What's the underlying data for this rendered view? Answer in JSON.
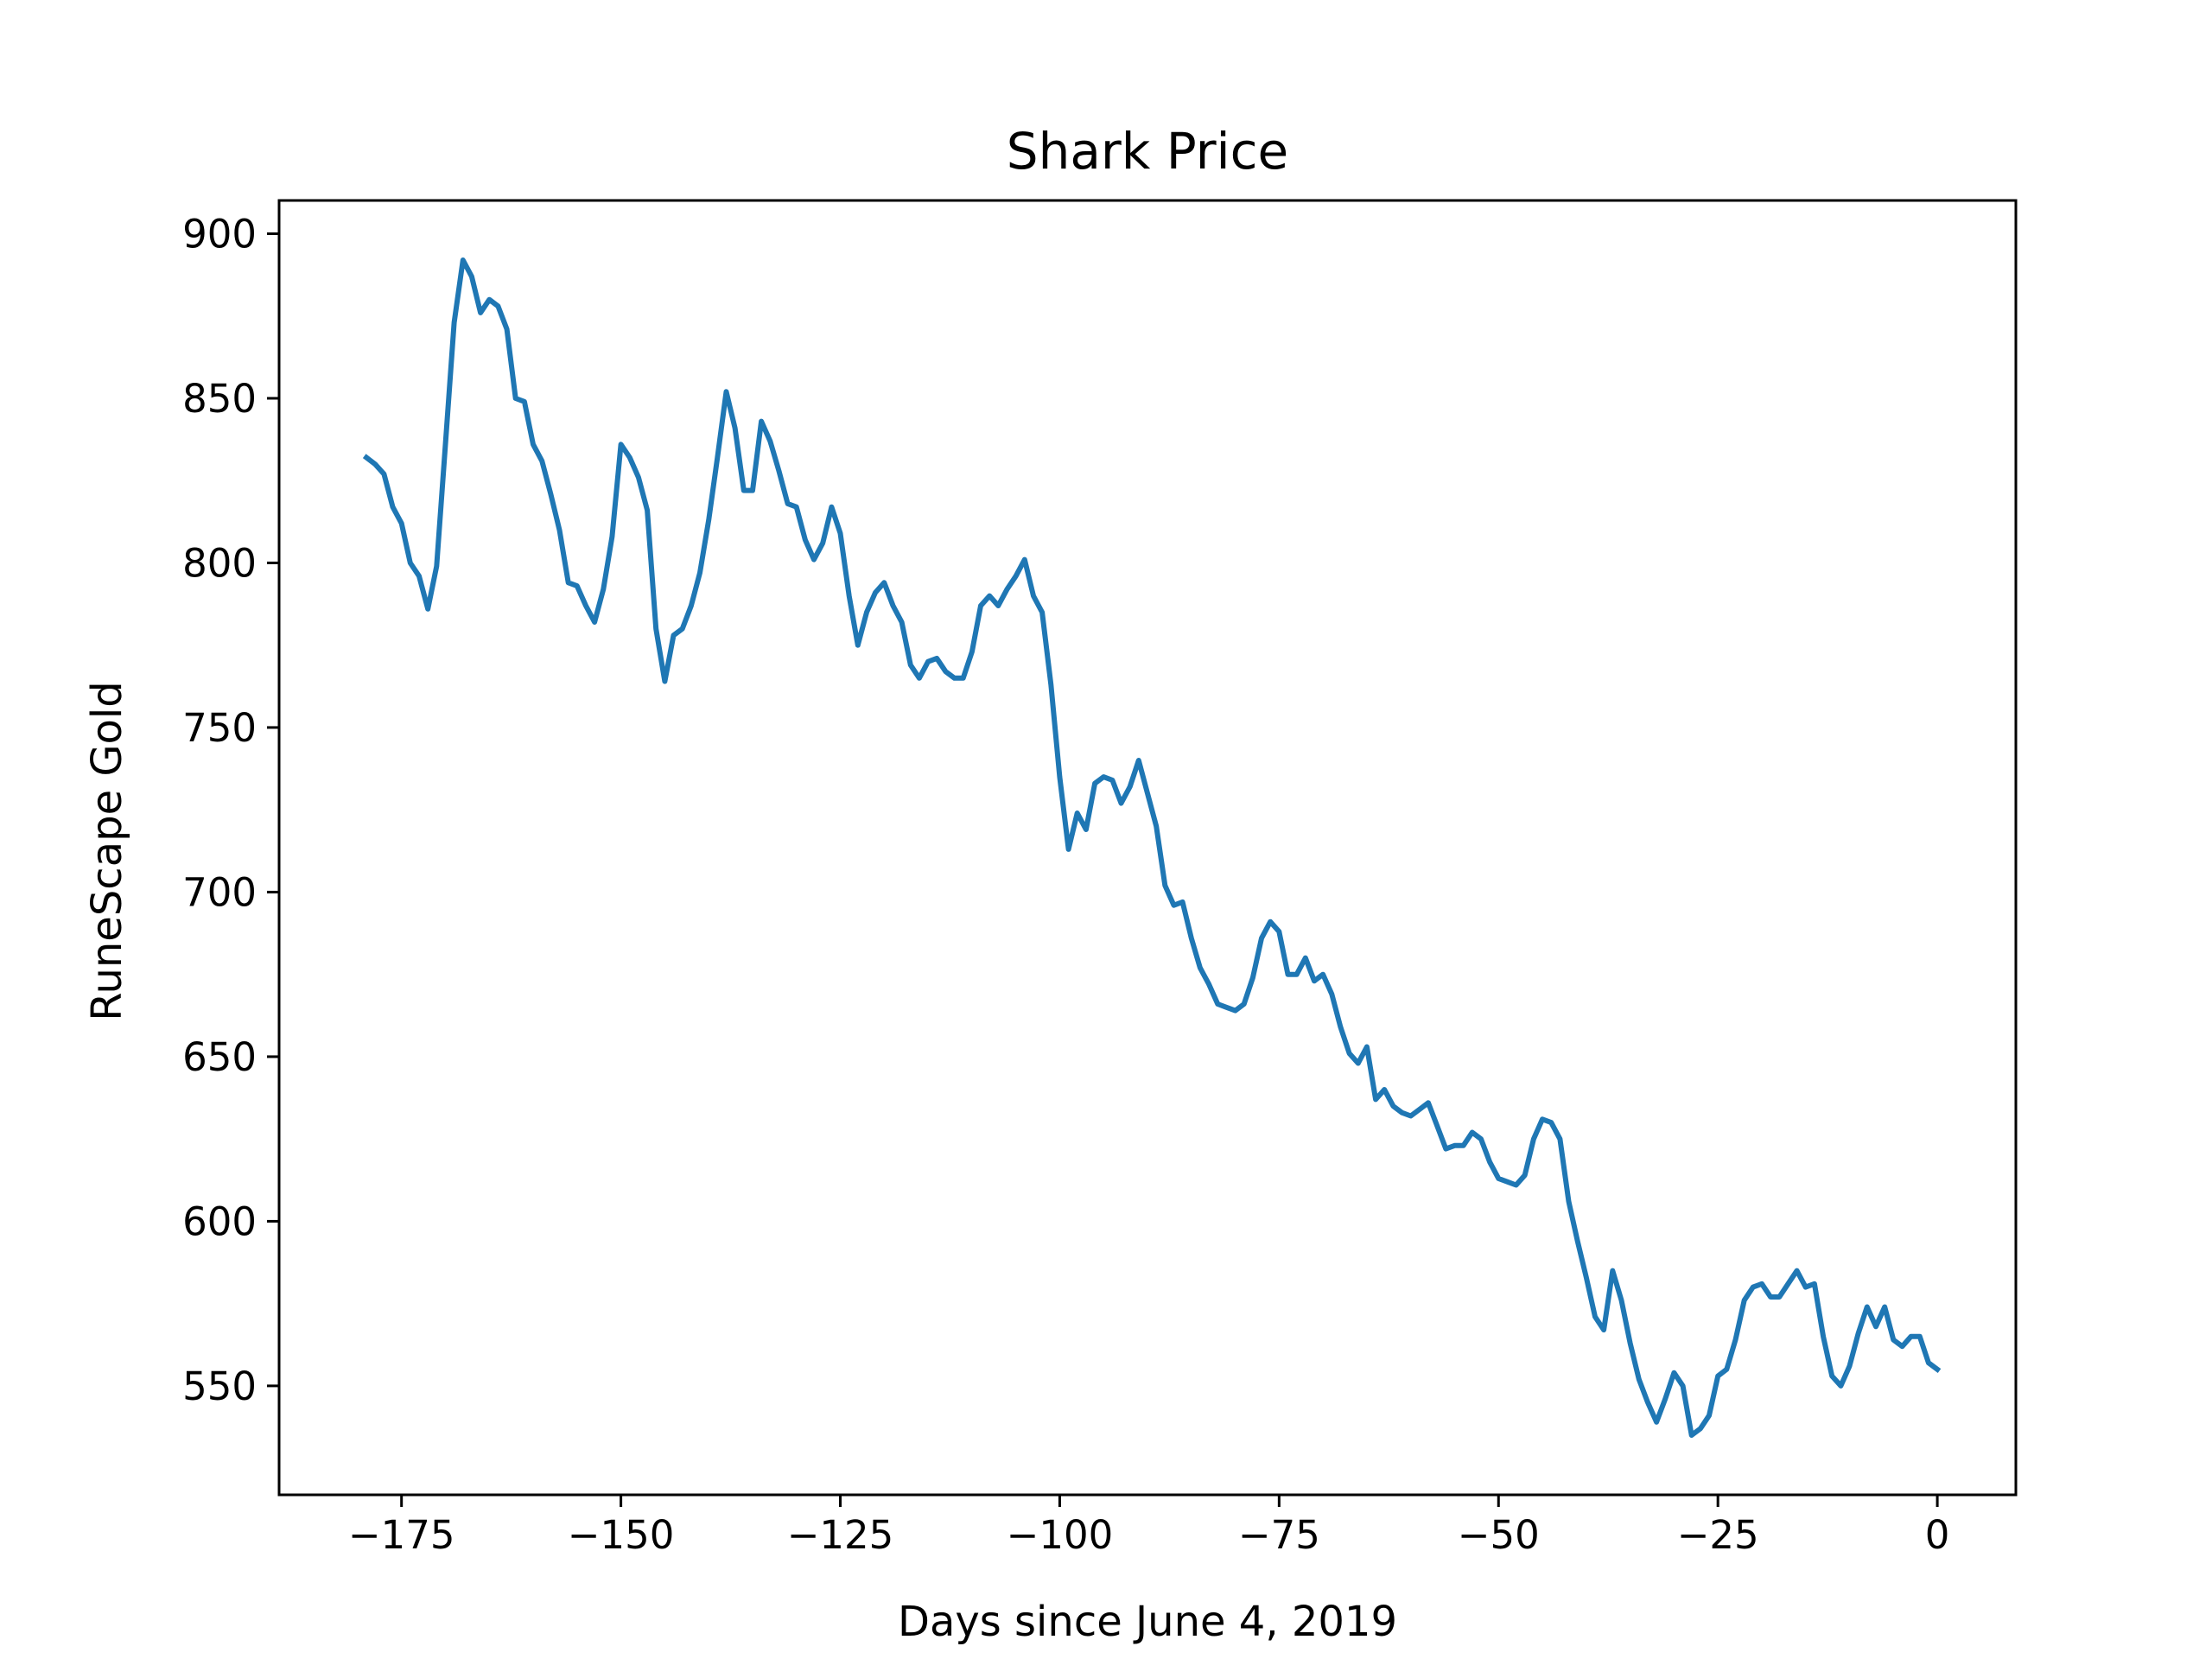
{
  "chart_data": {
    "type": "line",
    "title": "Shark Price",
    "xlabel": "Days since June 4, 2019",
    "ylabel": "RuneScape Gold",
    "xlim": [
      -188.95,
      8.95
    ],
    "ylim": [
      516.9,
      910.1
    ],
    "x_ticks": [
      -175,
      -150,
      -125,
      -100,
      -75,
      -50,
      -25,
      0
    ],
    "x_tick_labels": [
      "−175",
      "−150",
      "−125",
      "−100",
      "−75",
      "−50",
      "−25",
      "0"
    ],
    "y_ticks": [
      550,
      600,
      650,
      700,
      750,
      800,
      850,
      900
    ],
    "y_tick_labels": [
      "550",
      "600",
      "650",
      "700",
      "750",
      "800",
      "850",
      "900"
    ],
    "grid": false,
    "series": [
      {
        "color": "#1f77b4",
        "x": [
          -179,
          -178,
          -177,
          -176,
          -175,
          -174,
          -173,
          -172,
          -171,
          -170,
          -169,
          -168,
          -167,
          -166,
          -165,
          -164,
          -163,
          -162,
          -161,
          -160,
          -159,
          -158,
          -157,
          -156,
          -155,
          -154,
          -153,
          -152,
          -151,
          -150,
          -149,
          -148,
          -147,
          -146,
          -145,
          -144,
          -143,
          -142,
          -141,
          -140,
          -139,
          -138,
          -137,
          -136,
          -135,
          -134,
          -133,
          -132,
          -131,
          -130,
          -129,
          -128,
          -127,
          -126,
          -125,
          -124,
          -123,
          -122,
          -121,
          -120,
          -119,
          -118,
          -117,
          -116,
          -115,
          -114,
          -113,
          -112,
          -111,
          -110,
          -109,
          -108,
          -107,
          -106,
          -105,
          -104,
          -103,
          -102,
          -101,
          -100,
          -99,
          -98,
          -97,
          -96,
          -95,
          -94,
          -93,
          -92,
          -91,
          -90,
          -89,
          -88,
          -87,
          -86,
          -85,
          -84,
          -83,
          -82,
          -81,
          -80,
          -79,
          -78,
          -77,
          -76,
          -75,
          -74,
          -73,
          -72,
          -71,
          -70,
          -69,
          -68,
          -67,
          -66,
          -65,
          -64,
          -63,
          -62,
          -61,
          -60,
          -59,
          -58,
          -57,
          -56,
          -55,
          -54,
          -53,
          -52,
          -51,
          -50,
          -49,
          -48,
          -47,
          -46,
          -45,
          -44,
          -43,
          -42,
          -41,
          -40,
          -39,
          -38,
          -37,
          -36,
          -35,
          -34,
          -33,
          -32,
          -31,
          -30,
          -29,
          -28,
          -27,
          -26,
          -25,
          -24,
          -23,
          -22,
          -21,
          -20,
          -19,
          -18,
          -17,
          -16,
          -15,
          -14,
          -13,
          -12,
          -11,
          -10,
          -9,
          -8,
          -7,
          -6,
          -5,
          -4,
          -3,
          -2,
          -1,
          0
        ],
        "y": [
          832,
          830,
          827,
          817,
          812,
          800,
          796,
          786,
          799,
          836,
          873,
          892,
          887,
          876,
          880,
          878,
          871,
          850,
          849,
          836,
          831,
          821,
          810,
          794,
          793,
          787,
          782,
          792,
          808,
          836,
          832,
          826,
          816,
          780,
          764,
          778,
          780,
          787,
          797,
          813,
          832,
          852,
          841,
          822,
          822,
          843,
          837,
          828,
          818,
          817,
          807,
          801,
          806,
          817,
          809,
          790,
          775,
          785,
          791,
          794,
          787,
          782,
          769,
          765,
          770,
          771,
          767,
          765,
          765,
          773,
          787,
          790,
          787,
          792,
          796,
          801,
          790,
          785,
          763,
          735,
          713,
          724,
          719,
          733,
          735,
          734,
          727,
          732,
          740,
          730,
          720,
          702,
          696,
          697,
          686,
          677,
          672,
          666,
          665,
          664,
          666,
          674,
          686,
          691,
          688,
          675,
          675,
          680,
          673,
          675,
          669,
          659,
          651,
          648,
          653,
          637,
          640,
          635,
          633,
          632,
          634,
          636,
          629,
          622,
          623,
          623,
          627,
          625,
          618,
          613,
          612,
          611,
          614,
          625,
          631,
          630,
          625,
          606,
          594,
          583,
          571,
          567,
          585,
          576,
          563,
          552,
          545,
          539,
          546,
          554,
          550,
          535,
          537,
          541,
          553,
          555,
          564,
          576,
          580,
          581,
          577,
          577,
          581,
          585,
          580,
          581,
          565,
          553,
          550,
          556,
          566,
          574,
          568,
          574,
          564,
          562,
          565,
          565,
          557,
          555
        ]
      }
    ]
  }
}
